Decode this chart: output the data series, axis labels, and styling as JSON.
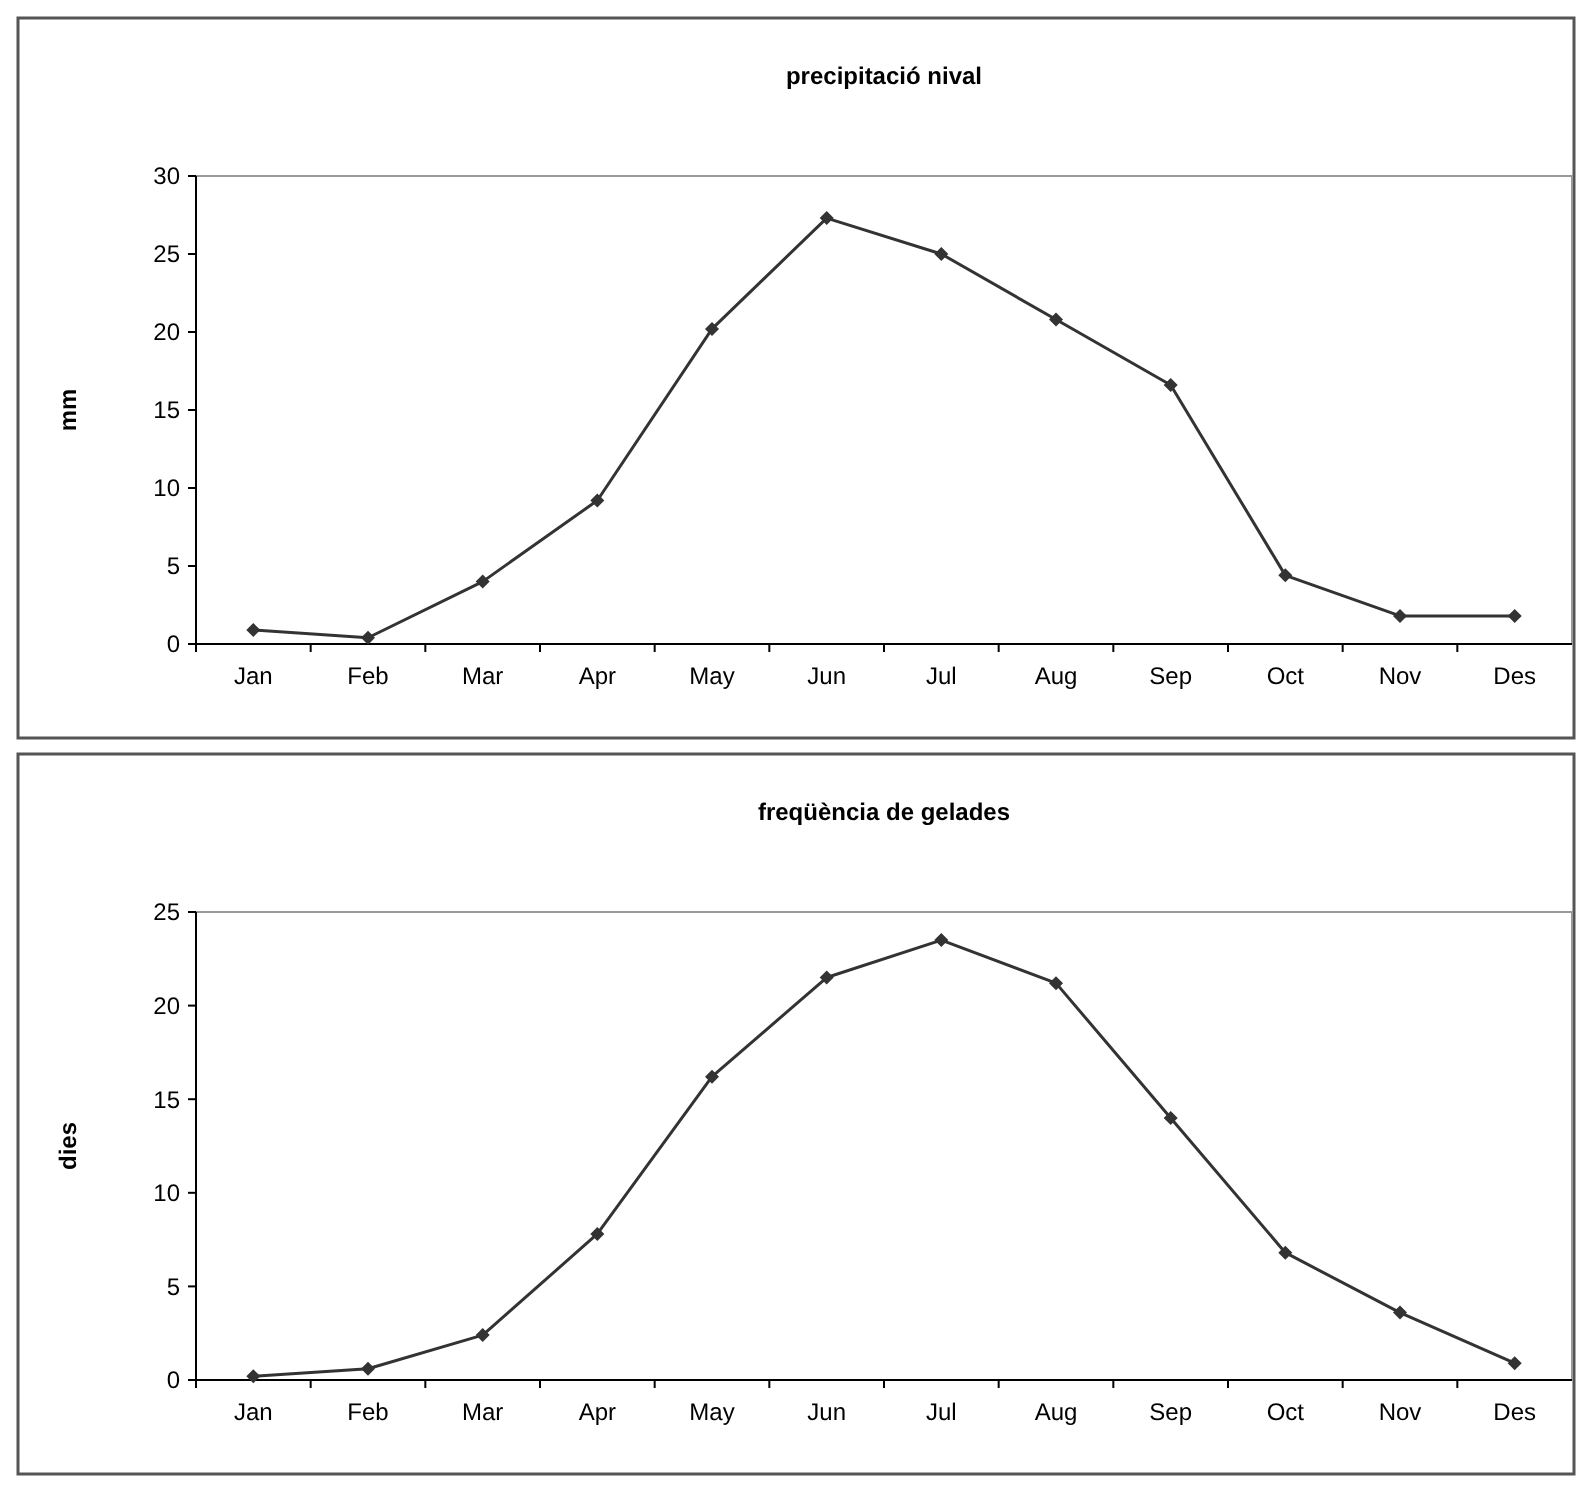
{
  "chart_data": [
    {
      "type": "line",
      "title": "precipitació nival",
      "ylabel": "mm",
      "categories": [
        "Jan",
        "Feb",
        "Mar",
        "Apr",
        "May",
        "Jun",
        "Jul",
        "Aug",
        "Sep",
        "Oct",
        "Nov",
        "Des"
      ],
      "series": [
        {
          "color": "#333333",
          "values": [
            0.9,
            0.4,
            4.0,
            9.2,
            20.2,
            27.3,
            25.0,
            20.8,
            16.6,
            4.4,
            1.8,
            1.8
          ]
        }
      ],
      "ylim": [
        0,
        30
      ],
      "yticks": [
        0,
        5,
        10,
        15,
        20,
        25,
        30
      ],
      "grid": false,
      "marker": "diamond",
      "line_style": "solid"
    },
    {
      "type": "line",
      "title": "freqüència de gelades",
      "ylabel": "dies",
      "categories": [
        "Jan",
        "Feb",
        "Mar",
        "Apr",
        "May",
        "Jun",
        "Jul",
        "Aug",
        "Sep",
        "Oct",
        "Nov",
        "Des"
      ],
      "series": [
        {
          "color": "#333333",
          "values": [
            0.2,
            0.6,
            2.4,
            7.8,
            16.2,
            21.5,
            23.5,
            21.2,
            14.0,
            6.8,
            3.6,
            0.9
          ]
        }
      ],
      "ylim": [
        0,
        25
      ],
      "yticks": [
        0,
        5,
        10,
        15,
        20,
        25
      ],
      "grid": false,
      "marker": "diamond",
      "line_style": "solid"
    }
  ]
}
